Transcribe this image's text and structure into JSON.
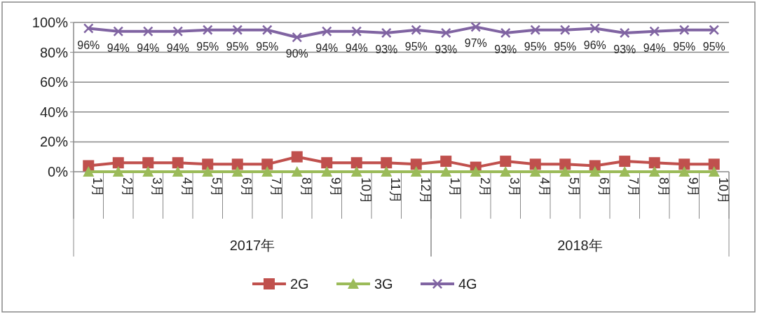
{
  "chart_data": {
    "type": "line",
    "categories": [
      "1月",
      "2月",
      "3月",
      "4月",
      "5月",
      "6月",
      "7月",
      "8月",
      "9月",
      "10月",
      "11月",
      "12月",
      "1月",
      "2月",
      "3月",
      "4月",
      "5月",
      "6月",
      "7月",
      "8月",
      "9月",
      "10月"
    ],
    "annotations": [
      "2017年",
      "2018年"
    ],
    "series": [
      {
        "name": "2G",
        "color": "#c0504d",
        "marker": "square",
        "values": [
          4,
          6,
          6,
          6,
          5,
          5,
          5,
          10,
          6,
          6,
          6,
          5,
          7,
          3,
          7,
          5,
          5,
          4,
          7,
          6,
          5,
          5
        ]
      },
      {
        "name": "3G",
        "color": "#9bbb59",
        "marker": "triangle",
        "values": [
          0,
          0,
          0,
          0,
          0,
          0,
          0,
          0,
          0,
          0,
          0,
          0,
          0,
          0,
          0,
          0,
          0,
          0,
          0,
          0,
          0,
          0
        ]
      },
      {
        "name": "4G",
        "color": "#8064a2",
        "marker": "cross",
        "values": [
          96,
          94,
          94,
          94,
          95,
          95,
          95,
          90,
          94,
          94,
          93,
          95,
          93,
          97,
          93,
          95,
          95,
          96,
          93,
          94,
          95,
          95
        ],
        "value_labels": [
          "96%",
          "94%",
          "94%",
          "94%",
          "95%",
          "95%",
          "95%",
          "90%",
          "94%",
          "94%",
          "93%",
          "95%",
          "93%",
          "97%",
          "93%",
          "95%",
          "95%",
          "96%",
          "93%",
          "94%",
          "95%",
          "95%"
        ]
      }
    ],
    "ylim": [
      0,
      100
    ],
    "yticks": [
      {
        "value": 0,
        "label": "0%"
      },
      {
        "value": 20,
        "label": "20%"
      },
      {
        "value": 40,
        "label": "40%"
      },
      {
        "value": 60,
        "label": "60%"
      },
      {
        "value": 80,
        "label": "80%"
      },
      {
        "value": 100,
        "label": "100%"
      }
    ],
    "grid": "y",
    "legend": "bottom"
  }
}
